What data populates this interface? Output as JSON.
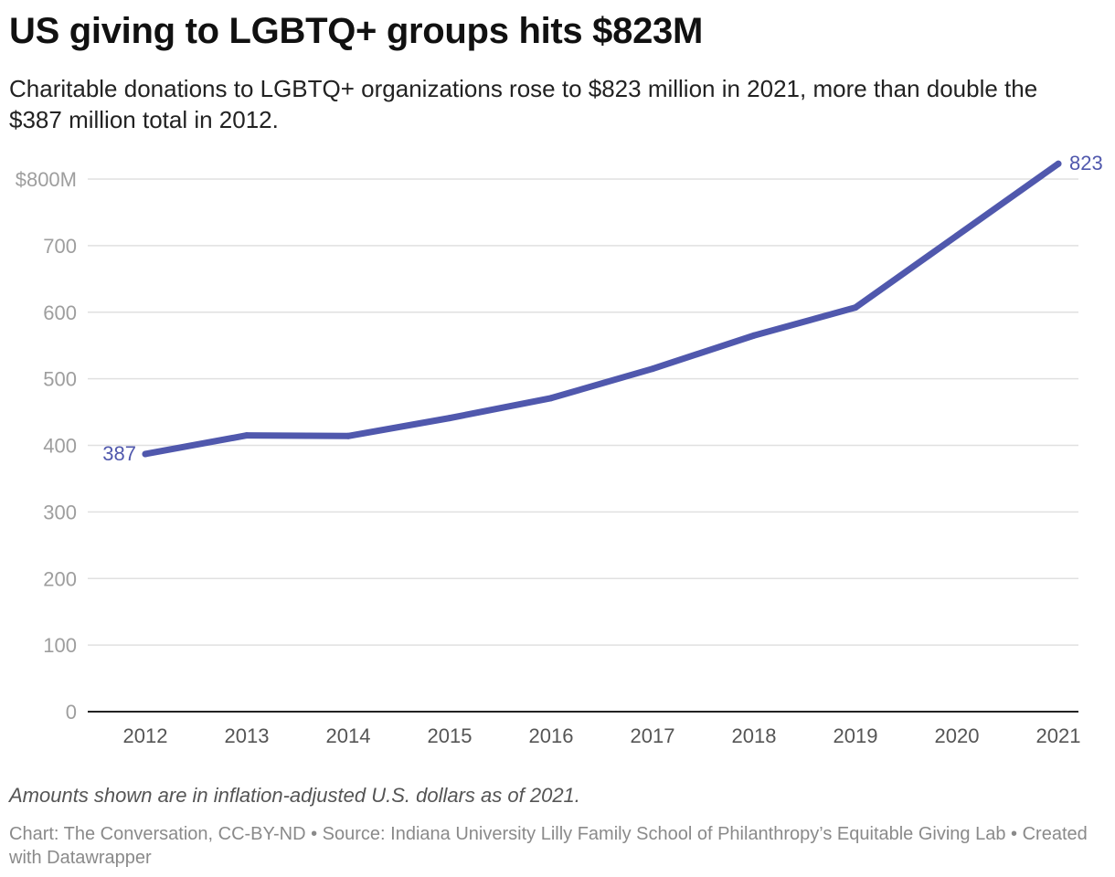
{
  "header": {
    "title": "US giving to LGBTQ+ groups hits $823M",
    "subtitle": "Charitable donations to LGBTQ+ organizations rose to $823 million in 2021, more than double the $387 million total in 2012."
  },
  "footer": {
    "note": "Amounts shown are in inflation-adjusted U.S. dollars as of 2021.",
    "credit": "Chart: The Conversation, CC-BY-ND • Source: Indiana University Lilly Family School of Philanthropy’s Equitable Giving Lab • Created with Datawrapper"
  },
  "chart_data": {
    "type": "line",
    "title": "US giving to LGBTQ+ groups hits $823M",
    "x": [
      "2012",
      "2013",
      "2014",
      "2015",
      "2016",
      "2017",
      "2018",
      "2019",
      "2020",
      "2021"
    ],
    "series": [
      {
        "values": [
          387,
          415,
          414,
          441,
          471,
          515,
          565,
          607,
          715,
          823
        ],
        "color": "#5058ad"
      }
    ],
    "ylim": [
      0,
      800
    ],
    "yticks": [
      0,
      100,
      200,
      300,
      400,
      500,
      600,
      700,
      800
    ],
    "ytick_labels": [
      "0",
      "100",
      "200",
      "300",
      "400",
      "500",
      "600",
      "700",
      "$800M"
    ],
    "annotations": [
      {
        "x": "2012",
        "value": 387,
        "label": "387",
        "side": "left"
      },
      {
        "x": "2021",
        "value": 823,
        "label": "823",
        "side": "right"
      }
    ],
    "grid": true,
    "legend": "none"
  }
}
